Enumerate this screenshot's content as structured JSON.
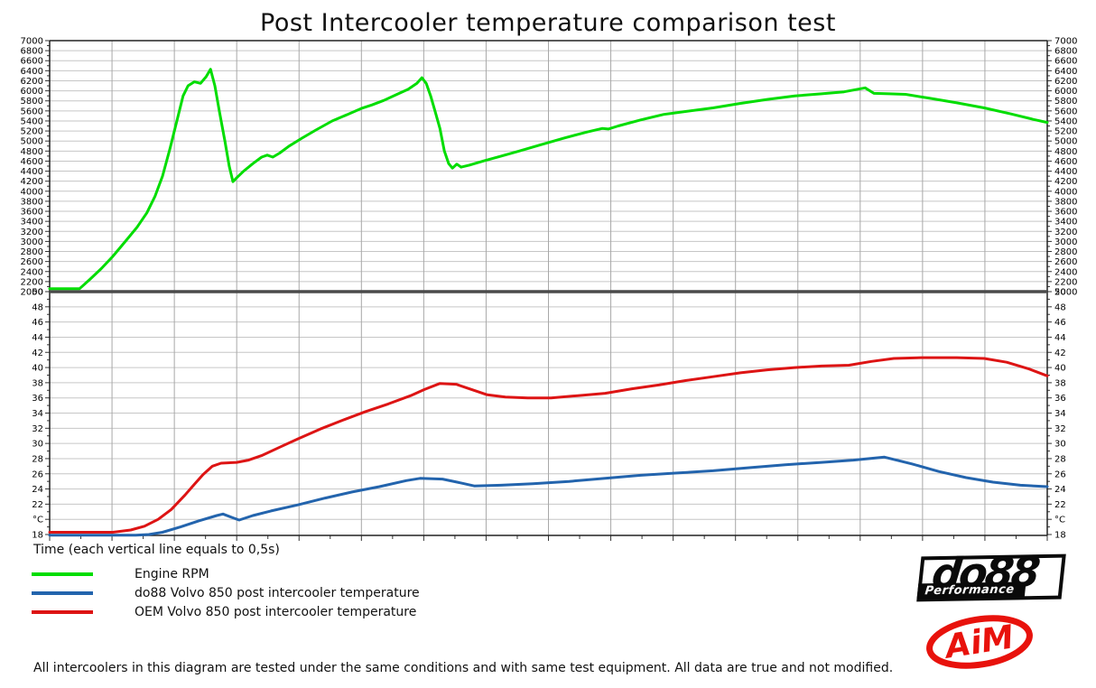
{
  "title": "Post Intercooler temperature comparison test",
  "time_axis_label": "Time (each vertical line equals to 0,5s)",
  "footer_note": "All intercoolers in this diagram are tested under the same conditions and with same test equipment. All data are true and not modified.",
  "logos": {
    "do88": {
      "name": "do88",
      "sub": "Performance"
    },
    "aim": {
      "name": "AiM",
      "color": "#e8120c"
    }
  },
  "chart_data": {
    "type": "line",
    "title": "Post Intercooler temperature comparison test",
    "xlabel": "Time (each vertical line equals to 0,5s)",
    "x_gridline_interval_seconds": 0.5,
    "x_gridline_intervals": 16,
    "grid": true,
    "legend_position": "bottom-left",
    "panels": [
      {
        "id": "rpm",
        "ylim": [
          2000,
          7000
        ],
        "tick_step": 200,
        "minor_step": 100
      },
      {
        "id": "temp",
        "ylim": [
          18,
          50
        ],
        "tick_step": 2,
        "minor_step": 1,
        "unit_label": "°C",
        "unit_label_replaces_value": 20
      }
    ],
    "colors": {
      "grid": "#c6c6c6",
      "vgrid": "#a8a8a8",
      "axis": "#333333",
      "separator": "#4a4a4a"
    },
    "series": [
      {
        "name": "Engine RPM",
        "panel": "rpm",
        "color": "#00dd00",
        "width": 3,
        "points": [
          [
            0,
            2060
          ],
          [
            0.48,
            2060
          ],
          [
            0.65,
            2250
          ],
          [
            0.83,
            2460
          ],
          [
            1.01,
            2700
          ],
          [
            1.2,
            2980
          ],
          [
            1.4,
            3280
          ],
          [
            1.56,
            3570
          ],
          [
            1.69,
            3900
          ],
          [
            1.81,
            4300
          ],
          [
            1.93,
            4850
          ],
          [
            2.04,
            5400
          ],
          [
            2.14,
            5900
          ],
          [
            2.22,
            6100
          ],
          [
            2.32,
            6180
          ],
          [
            2.42,
            6150
          ],
          [
            2.51,
            6280
          ],
          [
            2.58,
            6430
          ],
          [
            2.65,
            6100
          ],
          [
            2.72,
            5600
          ],
          [
            2.81,
            5000
          ],
          [
            2.88,
            4500
          ],
          [
            2.94,
            4190
          ],
          [
            3.01,
            4280
          ],
          [
            3.11,
            4400
          ],
          [
            3.26,
            4550
          ],
          [
            3.4,
            4680
          ],
          [
            3.49,
            4720
          ],
          [
            3.58,
            4680
          ],
          [
            3.69,
            4760
          ],
          [
            3.84,
            4900
          ],
          [
            4.05,
            5060
          ],
          [
            4.27,
            5220
          ],
          [
            4.53,
            5400
          ],
          [
            4.78,
            5530
          ],
          [
            5,
            5650
          ],
          [
            5.17,
            5720
          ],
          [
            5.36,
            5810
          ],
          [
            5.57,
            5930
          ],
          [
            5.75,
            6030
          ],
          [
            5.89,
            6150
          ],
          [
            5.97,
            6260
          ],
          [
            6.04,
            6150
          ],
          [
            6.11,
            5900
          ],
          [
            6.18,
            5600
          ],
          [
            6.26,
            5250
          ],
          [
            6.33,
            4800
          ],
          [
            6.4,
            4550
          ],
          [
            6.46,
            4460
          ],
          [
            6.53,
            4540
          ],
          [
            6.6,
            4480
          ],
          [
            6.73,
            4520
          ],
          [
            6.95,
            4600
          ],
          [
            7.24,
            4700
          ],
          [
            7.53,
            4800
          ],
          [
            7.89,
            4930
          ],
          [
            8.25,
            5060
          ],
          [
            8.62,
            5180
          ],
          [
            8.86,
            5250
          ],
          [
            8.96,
            5240
          ],
          [
            9.12,
            5300
          ],
          [
            9.48,
            5420
          ],
          [
            9.85,
            5530
          ],
          [
            10.21,
            5590
          ],
          [
            10.64,
            5660
          ],
          [
            11.08,
            5750
          ],
          [
            11.51,
            5830
          ],
          [
            11.95,
            5900
          ],
          [
            12.38,
            5940
          ],
          [
            12.74,
            5980
          ],
          [
            13.08,
            6060
          ],
          [
            13.22,
            5950
          ],
          [
            13.47,
            5940
          ],
          [
            13.73,
            5930
          ],
          [
            14.12,
            5850
          ],
          [
            14.55,
            5760
          ],
          [
            14.99,
            5660
          ],
          [
            15.42,
            5540
          ],
          [
            15.78,
            5430
          ],
          [
            16,
            5370
          ]
        ]
      },
      {
        "name": "do88 Volvo 850 post intercooler temperature",
        "panel": "temp",
        "color": "#2364ad",
        "width": 3,
        "points": [
          [
            0,
            17.9
          ],
          [
            1.38,
            17.9
          ],
          [
            1.59,
            18.0
          ],
          [
            1.81,
            18.3
          ],
          [
            2.1,
            19
          ],
          [
            2.39,
            19.8
          ],
          [
            2.68,
            20.5
          ],
          [
            2.78,
            20.7
          ],
          [
            2.94,
            20.2
          ],
          [
            3.04,
            19.9
          ],
          [
            3.26,
            20.5
          ],
          [
            3.55,
            21.1
          ],
          [
            3.98,
            21.9
          ],
          [
            4.42,
            22.8
          ],
          [
            4.85,
            23.6
          ],
          [
            5.29,
            24.3
          ],
          [
            5.72,
            25.1
          ],
          [
            5.94,
            25.4
          ],
          [
            6.3,
            25.3
          ],
          [
            6.59,
            24.8
          ],
          [
            6.81,
            24.4
          ],
          [
            7.24,
            24.5
          ],
          [
            7.75,
            24.7
          ],
          [
            8.33,
            25
          ],
          [
            8.91,
            25.4
          ],
          [
            9.48,
            25.8
          ],
          [
            10.06,
            26.1
          ],
          [
            10.64,
            26.4
          ],
          [
            11.22,
            26.8
          ],
          [
            11.8,
            27.2
          ],
          [
            12.38,
            27.5
          ],
          [
            12.89,
            27.8
          ],
          [
            13.39,
            28.2
          ],
          [
            13.83,
            27.3
          ],
          [
            14.26,
            26.3
          ],
          [
            14.7,
            25.5
          ],
          [
            15.13,
            24.9
          ],
          [
            15.57,
            24.5
          ],
          [
            16,
            24.3
          ]
        ]
      },
      {
        "name": "OEM Volvo 850 post intercooler temperature",
        "panel": "temp",
        "color": "#dd1414",
        "width": 3,
        "points": [
          [
            0,
            18.3
          ],
          [
            1.01,
            18.3
          ],
          [
            1.3,
            18.6
          ],
          [
            1.52,
            19.1
          ],
          [
            1.74,
            20
          ],
          [
            1.95,
            21.3
          ],
          [
            2.17,
            23.2
          ],
          [
            2.32,
            24.6
          ],
          [
            2.46,
            25.9
          ],
          [
            2.61,
            27
          ],
          [
            2.75,
            27.4
          ],
          [
            3,
            27.5
          ],
          [
            3.19,
            27.8
          ],
          [
            3.4,
            28.4
          ],
          [
            3.69,
            29.5
          ],
          [
            3.98,
            30.6
          ],
          [
            4.34,
            31.9
          ],
          [
            4.71,
            33.1
          ],
          [
            5.07,
            34.2
          ],
          [
            5.43,
            35.2
          ],
          [
            5.79,
            36.3
          ],
          [
            6.01,
            37.1
          ],
          [
            6.26,
            37.9
          ],
          [
            6.52,
            37.8
          ],
          [
            6.73,
            37.2
          ],
          [
            7.02,
            36.4
          ],
          [
            7.31,
            36.1
          ],
          [
            7.67,
            36
          ],
          [
            8.04,
            36
          ],
          [
            8.47,
            36.3
          ],
          [
            8.91,
            36.6
          ],
          [
            9.34,
            37.2
          ],
          [
            9.77,
            37.7
          ],
          [
            10.21,
            38.3
          ],
          [
            10.64,
            38.8
          ],
          [
            11.08,
            39.3
          ],
          [
            11.51,
            39.7
          ],
          [
            11.95,
            40
          ],
          [
            12.38,
            40.2
          ],
          [
            12.82,
            40.3
          ],
          [
            13.18,
            40.8
          ],
          [
            13.54,
            41.2
          ],
          [
            13.98,
            41.3
          ],
          [
            14.55,
            41.3
          ],
          [
            14.99,
            41.2
          ],
          [
            15.35,
            40.7
          ],
          [
            15.71,
            39.8
          ],
          [
            16,
            38.9
          ]
        ]
      }
    ]
  },
  "legend": {
    "items": [
      {
        "label": "Engine RPM"
      },
      {
        "label": "do88 Volvo 850 post intercooler temperature"
      },
      {
        "label": "OEM Volvo 850 post intercooler temperature"
      }
    ]
  }
}
